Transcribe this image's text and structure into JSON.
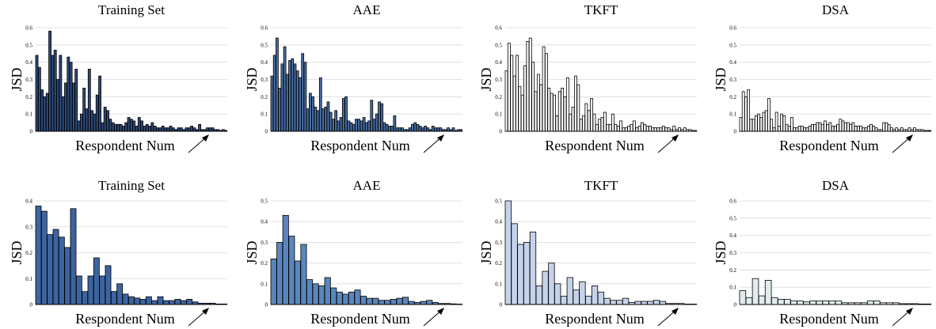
{
  "figure": {
    "ylabel": "JSD",
    "xlabel": "Respondent Num",
    "arrow_glyph": "↗"
  },
  "chart_data": [
    {
      "type": "bar",
      "title": "Training Set",
      "xlabel": "Respondent Num",
      "ylabel": "JSD",
      "ylim": [
        0,
        0.6
      ],
      "yticks": [
        "0",
        "0.1",
        "0.2",
        "0.3",
        "0.4",
        "0.5",
        "0.6"
      ],
      "fill": "#2f4b7c",
      "grid": true,
      "values": [
        0.44,
        0.37,
        0.24,
        0.2,
        0.22,
        0.58,
        0.44,
        0.47,
        0.3,
        0.44,
        0.2,
        0.28,
        0.43,
        0.4,
        0.28,
        0.36,
        0.06,
        0.1,
        0.25,
        0.13,
        0.36,
        0.12,
        0.1,
        0.21,
        0.32,
        0.05,
        0.14,
        0.12,
        0.07,
        0.05,
        0.04,
        0.04,
        0.04,
        0.03,
        0.05,
        0.08,
        0.07,
        0.06,
        0.03,
        0.08,
        0.06,
        0.03,
        0.04,
        0.03,
        0.05,
        0.03,
        0.02,
        0.02,
        0.03,
        0.02,
        0.02,
        0.03,
        0.02,
        0.01,
        0.02,
        0.02,
        0.01,
        0.02,
        0.02,
        0.03,
        0.02,
        0.01,
        0.04,
        0.01,
        0.01,
        0.02,
        0.02,
        0.02,
        0.01,
        0.01,
        0.005,
        0.01,
        0.005
      ]
    },
    {
      "type": "bar",
      "title": "AAE",
      "xlabel": "Respondent Num",
      "ylabel": "JSD",
      "ylim": [
        0,
        0.6
      ],
      "yticks": [
        "0",
        "0.1",
        "0.2",
        "0.3",
        "0.4",
        "0.5",
        "0.6"
      ],
      "fill": "#4a6fa5",
      "grid": true,
      "values": [
        0.32,
        0.44,
        0.54,
        0.25,
        0.39,
        0.49,
        0.33,
        0.41,
        0.42,
        0.39,
        0.35,
        0.31,
        0.45,
        0.4,
        0.13,
        0.22,
        0.2,
        0.14,
        0.12,
        0.31,
        0.13,
        0.14,
        0.17,
        0.11,
        0.07,
        0.12,
        0.06,
        0.08,
        0.19,
        0.2,
        0.06,
        0.05,
        0.04,
        0.07,
        0.07,
        0.06,
        0.08,
        0.05,
        0.06,
        0.18,
        0.07,
        0.1,
        0.17,
        0.16,
        0.05,
        0.04,
        0.03,
        0.03,
        0.09,
        0.02,
        0.02,
        0.02,
        0.01,
        0.01,
        0.02,
        0.04,
        0.05,
        0.04,
        0.03,
        0.02,
        0.03,
        0.02,
        0.01,
        0.03,
        0.02,
        0.02,
        0.02,
        0.01,
        0.01,
        0.02,
        0.01,
        0.02,
        0.005,
        0.01,
        0.01
      ]
    },
    {
      "type": "bar",
      "title": "TKFT",
      "xlabel": "Respondent Num",
      "ylabel": "JSD",
      "ylim": [
        0,
        0.6
      ],
      "yticks": [
        "0",
        "0.1",
        "0.2",
        "0.3",
        "0.4",
        "0.5",
        "0.6"
      ],
      "fill": "#ffffff",
      "grid": true,
      "values": [
        0.35,
        0.51,
        0.44,
        0.32,
        0.44,
        0.26,
        0.21,
        0.38,
        0.52,
        0.54,
        0.4,
        0.23,
        0.33,
        0.27,
        0.49,
        0.45,
        0.25,
        0.22,
        0.21,
        0.09,
        0.23,
        0.25,
        0.2,
        0.31,
        0.1,
        0.14,
        0.32,
        0.27,
        0.07,
        0.09,
        0.16,
        0.12,
        0.19,
        0.1,
        0.04,
        0.07,
        0.08,
        0.11,
        0.04,
        0.04,
        0.1,
        0.04,
        0.03,
        0.06,
        0.02,
        0.02,
        0.03,
        0.04,
        0.06,
        0.02,
        0.03,
        0.05,
        0.04,
        0.03,
        0.03,
        0.02,
        0.02,
        0.02,
        0.02,
        0.03,
        0.02,
        0.02,
        0.01,
        0.03,
        0.01,
        0.02,
        0.01,
        0.02,
        0.01,
        0.01,
        0.005,
        0.005
      ]
    },
    {
      "type": "bar",
      "title": "DSA",
      "xlabel": "Respondent Num",
      "ylabel": "JSD",
      "ylim": [
        0,
        0.6
      ],
      "yticks": [
        "0",
        "0.1",
        "0.2",
        "0.3",
        "0.4",
        "0.5",
        "0.6"
      ],
      "fill": "#ffffff",
      "grid": true,
      "values": [
        0.08,
        0.23,
        0.2,
        0.24,
        0.07,
        0.07,
        0.09,
        0.1,
        0.08,
        0.11,
        0.12,
        0.19,
        0.07,
        0.02,
        0.11,
        0.03,
        0.1,
        0.09,
        0.04,
        0.03,
        0.08,
        0.02,
        0.02,
        0.03,
        0.03,
        0.02,
        0.02,
        0.03,
        0.04,
        0.04,
        0.05,
        0.05,
        0.04,
        0.06,
        0.04,
        0.05,
        0.03,
        0.03,
        0.04,
        0.07,
        0.06,
        0.05,
        0.05,
        0.04,
        0.05,
        0.03,
        0.03,
        0.03,
        0.02,
        0.02,
        0.03,
        0.04,
        0.03,
        0.02,
        0.01,
        0.01,
        0.05,
        0.05,
        0.04,
        0.02,
        0.01,
        0.02,
        0.01,
        0.02,
        0.01,
        0.01,
        0.02,
        0.01,
        0.02,
        0.01,
        0.01,
        0.01,
        0.005,
        0.005,
        0.005
      ]
    },
    {
      "type": "bar",
      "title": "Training Set",
      "xlabel": "Respondent Num",
      "ylabel": "JSD",
      "ylim": [
        0,
        0.4
      ],
      "yticks": [
        "0",
        "0.1",
        "0.2",
        "0.3",
        "0.4"
      ],
      "fill": "#3c64a0",
      "grid": true,
      "values": [
        0.38,
        0.36,
        0.27,
        0.29,
        0.26,
        0.22,
        0.37,
        0.11,
        0.05,
        0.11,
        0.18,
        0.11,
        0.15,
        0.05,
        0.08,
        0.04,
        0.03,
        0.025,
        0.02,
        0.03,
        0.015,
        0.03,
        0.015,
        0.015,
        0.02,
        0.015,
        0.02,
        0.01,
        0.005,
        0.005,
        0.005,
        0.002,
        0.002
      ]
    },
    {
      "type": "bar",
      "title": "AAE",
      "xlabel": "Respondent Num",
      "ylabel": "JSD",
      "ylim": [
        0,
        0.5
      ],
      "yticks": [
        "0",
        "0.1",
        "0.2",
        "0.3",
        "0.4",
        "0.5"
      ],
      "fill": "#5b86bd",
      "grid": true,
      "values": [
        0.22,
        0.3,
        0.43,
        0.33,
        0.21,
        0.29,
        0.12,
        0.1,
        0.09,
        0.13,
        0.08,
        0.06,
        0.05,
        0.06,
        0.07,
        0.04,
        0.03,
        0.03,
        0.02,
        0.02,
        0.025,
        0.03,
        0.035,
        0.015,
        0.01,
        0.015,
        0.02,
        0.01,
        0.005,
        0.005,
        0.003,
        0.002
      ]
    },
    {
      "type": "bar",
      "title": "TKFT",
      "xlabel": "Respondent Num",
      "ylabel": "JSD",
      "ylim": [
        0,
        0.5
      ],
      "yticks": [
        "0",
        "0.1",
        "0.2",
        "0.3",
        "0.4",
        "0.5"
      ],
      "fill": "#c5d3ea",
      "grid": true,
      "values": [
        0.5,
        0.39,
        0.29,
        0.3,
        0.35,
        0.09,
        0.16,
        0.2,
        0.1,
        0.04,
        0.13,
        0.07,
        0.11,
        0.04,
        0.09,
        0.06,
        0.03,
        0.02,
        0.02,
        0.03,
        0.01,
        0.015,
        0.015,
        0.015,
        0.02,
        0.015,
        0.005,
        0.005,
        0.005,
        0.002,
        0.002
      ]
    },
    {
      "type": "bar",
      "title": "DSA",
      "xlabel": "Respondent Num",
      "ylabel": "JSD",
      "ylim": [
        0,
        0.6
      ],
      "yticks": [
        "0",
        "0.1",
        "0.2",
        "0.3",
        "0.4",
        "0.5",
        "0.6"
      ],
      "fill": "#e2ecef",
      "grid": true,
      "values": [
        0.08,
        0.04,
        0.15,
        0.05,
        0.14,
        0.04,
        0.03,
        0.03,
        0.02,
        0.02,
        0.015,
        0.02,
        0.02,
        0.02,
        0.02,
        0.02,
        0.01,
        0.01,
        0.01,
        0.01,
        0.02,
        0.02,
        0.01,
        0.01,
        0.01,
        0.005,
        0.005,
        0.005,
        0.003,
        0.003
      ]
    }
  ]
}
